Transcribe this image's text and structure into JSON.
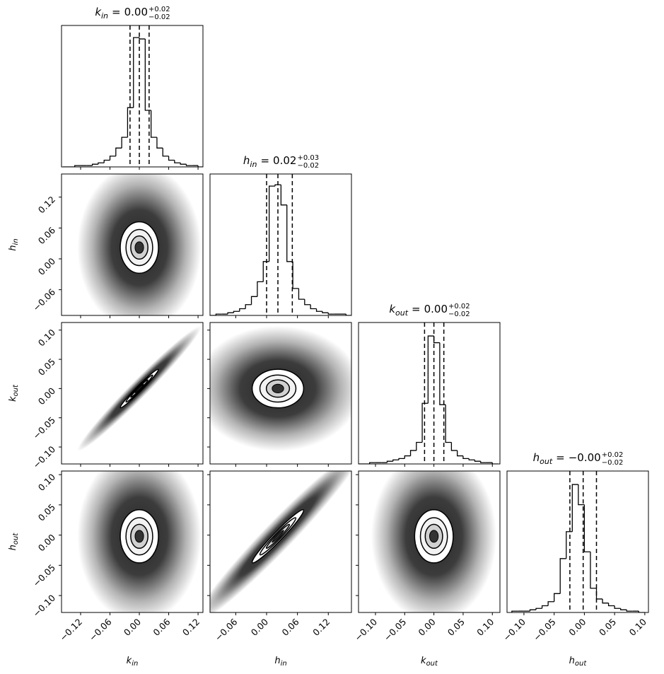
{
  "chart_data": {
    "type": "corner",
    "parameters": [
      {
        "symbol": "k",
        "sub": "in",
        "lim": [
          -0.159,
          0.13
        ],
        "ticks": [
          {
            "value": -0.12,
            "label": "−0.12"
          },
          {
            "value": -0.06,
            "label": "−0.06"
          },
          {
            "value": 0,
            "label": "0.00"
          },
          0.06,
          0.12
        ],
        "title": {
          "equals": "=",
          "value": "0.00",
          "plus": "+0.02",
          "minus": "−0.02"
        },
        "quantiles": [
          -0.019,
          0.0,
          0.02
        ],
        "hist_ylim": [
          0,
          105
        ],
        "bins": [
          -0.156,
          -0.144,
          -0.132,
          -0.12,
          -0.108,
          -0.096,
          -0.084,
          -0.072,
          -0.06,
          -0.048,
          -0.036,
          -0.024,
          -0.012,
          0,
          0.012,
          0.024,
          0.036,
          0.048,
          0.06,
          0.072,
          0.084,
          0.096,
          0.108,
          0.12,
          0.132
        ],
        "counts": [
          0,
          0,
          1,
          1,
          1,
          2,
          3,
          5,
          8,
          14,
          22,
          44,
          96,
          95,
          42,
          22,
          14,
          8,
          5,
          3,
          2,
          1,
          1,
          0
        ]
      },
      {
        "symbol": "h",
        "sub": "in",
        "lim": [
          -0.11,
          0.165
        ],
        "ticks": [
          {
            "value": -0.06,
            "label": "−0.06"
          },
          {
            "value": 0,
            "label": "0.00"
          },
          0.06,
          0.12
        ],
        "title": {
          "equals": "=",
          "value": "0.02",
          "plus": "+0.03",
          "minus": "−0.02"
        },
        "quantiles": [
          0.0,
          0.022,
          0.05
        ],
        "hist_ylim": [
          0,
          105
        ],
        "bins": [
          -0.11,
          -0.0985,
          -0.087,
          -0.0755,
          -0.064,
          -0.0525,
          -0.041,
          -0.0295,
          -0.018,
          -0.0065,
          0.005,
          0.0165,
          0.028,
          0.0395,
          0.051,
          0.0625,
          0.074,
          0.0855,
          0.097,
          0.1085,
          0.12,
          0.1315,
          0.143,
          0.1545,
          0.166
        ],
        "counts": [
          0,
          1,
          1,
          2,
          3,
          5,
          8,
          14,
          25,
          40,
          96,
          97,
          82,
          40,
          20,
          12,
          8,
          5,
          3,
          2,
          1,
          1,
          1,
          0
        ]
      },
      {
        "symbol": "k",
        "sub": "out",
        "lim": [
          -0.129,
          0.113
        ],
        "ticks": [
          {
            "value": -0.1,
            "label": "−0.10"
          },
          {
            "value": -0.05,
            "label": "−0.05"
          },
          {
            "value": 0,
            "label": "0.00"
          },
          0.05,
          {
            "value": 0.1,
            "label": "0.10"
          }
        ],
        "title": {
          "equals": "=",
          "value": "0.00",
          "plus": "+0.02",
          "minus": "−0.02"
        },
        "quantiles": [
          -0.016,
          0.0,
          0.017
        ],
        "hist_ylim": [
          0,
          105
        ],
        "bins": [
          -0.13,
          -0.12,
          -0.11,
          -0.1,
          -0.09,
          -0.08,
          -0.07,
          -0.06,
          -0.05,
          -0.04,
          -0.03,
          -0.02,
          -0.01,
          0,
          0.01,
          0.02,
          0.03,
          0.04,
          0.05,
          0.06,
          0.07,
          0.08,
          0.09,
          0.1,
          0.11
        ],
        "counts": [
          0,
          0,
          1,
          1,
          1,
          2,
          3,
          4,
          6,
          10,
          16,
          45,
          95,
          90,
          44,
          16,
          10,
          6,
          4,
          3,
          2,
          1,
          1,
          0
        ]
      },
      {
        "symbol": "h",
        "sub": "out",
        "lim": [
          -0.128,
          0.106
        ],
        "ticks": [
          {
            "value": -0.1,
            "label": "−0.10"
          },
          {
            "value": -0.05,
            "label": "−0.05"
          },
          {
            "value": 0,
            "label": "0.00"
          },
          0.05,
          {
            "value": 0.1,
            "label": "0.10"
          }
        ],
        "title": {
          "equals": "=",
          "value": "−0.00",
          "plus": "+0.02",
          "minus": "−0.02"
        },
        "quantiles": [
          -0.024,
          -0.002,
          0.02
        ],
        "hist_ylim": [
          0,
          105
        ],
        "bins": [
          -0.12,
          -0.11,
          -0.1,
          -0.09,
          -0.08,
          -0.07,
          -0.06,
          -0.05,
          -0.04,
          -0.03,
          -0.02,
          -0.01,
          0,
          0.01,
          0.02,
          0.03,
          0.04,
          0.05,
          0.06,
          0.07,
          0.08,
          0.09,
          0.1
        ],
        "counts": [
          1,
          1,
          1,
          2,
          3,
          5,
          8,
          14,
          40,
          60,
          95,
          80,
          45,
          18,
          10,
          7,
          5,
          3,
          2,
          1,
          1,
          0
        ]
      }
    ],
    "pairs": [
      {
        "x": 0,
        "y": 1,
        "corr": 0.0
      },
      {
        "x": 0,
        "y": 2,
        "corr": 0.98
      },
      {
        "x": 1,
        "y": 2,
        "corr": 0.0
      },
      {
        "x": 0,
        "y": 3,
        "corr": 0.0
      },
      {
        "x": 1,
        "y": 3,
        "corr": 0.97
      },
      {
        "x": 2,
        "y": 3,
        "corr": 0.0
      }
    ]
  }
}
